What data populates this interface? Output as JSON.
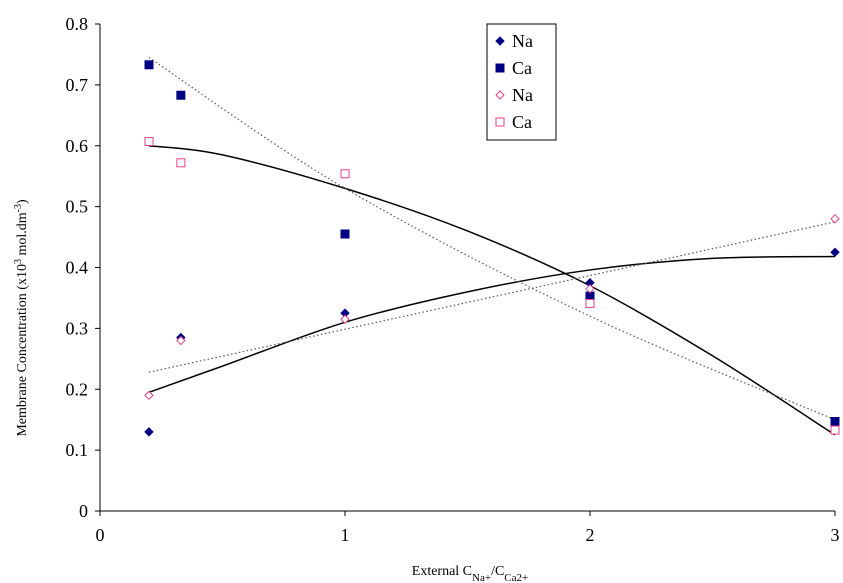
{
  "chart_data": {
    "type": "scatter",
    "title": "",
    "xlabel": "External C",
    "xlabel_sub1": "Na+",
    "xlabel_sep": "/C",
    "xlabel_sub2": "Ca2+",
    "ylabel": "Membrane Concentration (x10",
    "ylabel_sup": "3",
    "ylabel_tail": " mol.dm",
    "ylabel_sup2": "-3",
    "ylabel_end": ")",
    "xlim": [
      0,
      3
    ],
    "ylim": [
      0,
      0.8
    ],
    "xticks": [
      "0",
      "1",
      "2",
      "3"
    ],
    "yticks": [
      "0",
      "0.1",
      "0.2",
      "0.3",
      "0.4",
      "0.5",
      "0.6",
      "0.7",
      "0.8"
    ],
    "grid": false,
    "legend_position": "top-center",
    "series": [
      {
        "name": "Na",
        "marker": "filled-diamond",
        "color": "#000080",
        "x": [
          0.2,
          0.33,
          1,
          2,
          3
        ],
        "y": [
          0.13,
          0.285,
          0.325,
          0.375,
          0.425
        ]
      },
      {
        "name": "Ca",
        "marker": "filled-square",
        "color": "#000080",
        "x": [
          0.2,
          0.33,
          1,
          2,
          3
        ],
        "y": [
          0.733,
          0.683,
          0.455,
          0.353,
          0.147
        ]
      },
      {
        "name": "Na",
        "marker": "open-diamond",
        "color": "#e0408a",
        "x": [
          0.2,
          0.33,
          1,
          2,
          3
        ],
        "y": [
          0.19,
          0.28,
          0.315,
          0.365,
          0.48
        ]
      },
      {
        "name": "Ca",
        "marker": "open-square",
        "color": "#e0408a",
        "x": [
          0.2,
          0.33,
          1,
          2,
          3
        ],
        "y": [
          0.607,
          0.572,
          0.554,
          0.341,
          0.133
        ]
      }
    ],
    "trendlines": [
      {
        "style": "solid",
        "color": "#000000",
        "points": [
          [
            0.2,
            0.195
          ],
          [
            0.5,
            0.238
          ],
          [
            1,
            0.31
          ],
          [
            1.5,
            0.36
          ],
          [
            2,
            0.396
          ],
          [
            2.5,
            0.415
          ],
          [
            3,
            0.418
          ]
        ]
      },
      {
        "style": "solid",
        "color": "#000000",
        "points": [
          [
            0.2,
            0.6
          ],
          [
            0.5,
            0.585
          ],
          [
            1,
            0.53
          ],
          [
            1.5,
            0.46
          ],
          [
            2,
            0.37
          ],
          [
            2.5,
            0.255
          ],
          [
            3,
            0.125
          ]
        ]
      },
      {
        "style": "dotted",
        "color": "#555555",
        "points": [
          [
            0.2,
            0.228
          ],
          [
            3,
            0.475
          ]
        ]
      },
      {
        "style": "dotted",
        "color": "#555555",
        "points": [
          [
            0.2,
            0.745
          ],
          [
            1,
            0.53
          ],
          [
            2,
            0.32
          ],
          [
            3,
            0.15
          ]
        ]
      }
    ]
  }
}
